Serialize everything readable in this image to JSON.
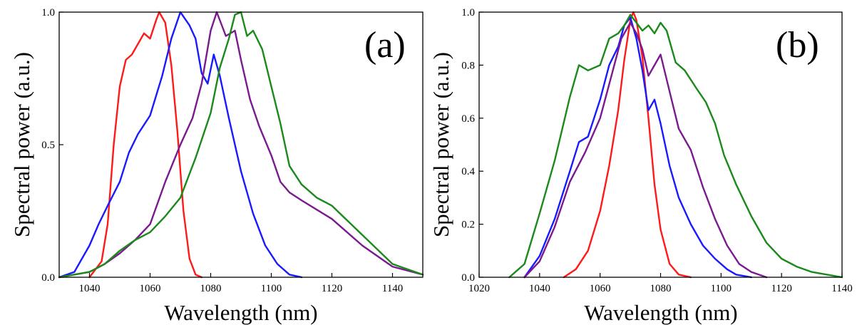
{
  "colors": {
    "red": "#ff1a1a",
    "blue": "#1a1aff",
    "purple": "#7b1a8f",
    "green": "#1a8a1a"
  },
  "chart_data": [
    {
      "type": "line",
      "panel_label": "(a)",
      "xlabel": "Wavelength (nm)",
      "ylabel": "Spectral power (a.u.)",
      "xlim": [
        1030,
        1150
      ],
      "ylim": [
        0,
        1.0
      ],
      "xticks": [
        1040,
        1060,
        1080,
        1100,
        1120,
        1140
      ],
      "xtick_labels": [
        "1040",
        "1060",
        "1080",
        "1100",
        "1120",
        "1140"
      ],
      "yticks": [
        0,
        0.5,
        1.0
      ],
      "ytick_labels": [
        "0.0",
        "0.5",
        "1.0"
      ],
      "series": [
        {
          "color": "#ff1a1a",
          "x": [
            1040,
            1044,
            1046,
            1048,
            1050,
            1052,
            1054,
            1056,
            1058,
            1060,
            1062,
            1063,
            1065,
            1067,
            1069,
            1071,
            1073,
            1075,
            1077
          ],
          "y": [
            0,
            0.06,
            0.2,
            0.5,
            0.72,
            0.82,
            0.84,
            0.88,
            0.92,
            0.9,
            0.97,
            1.0,
            0.96,
            0.8,
            0.55,
            0.25,
            0.07,
            0.01,
            0
          ]
        },
        {
          "color": "#1a1aff",
          "x": [
            1030,
            1035,
            1040,
            1043,
            1046,
            1050,
            1053,
            1056,
            1060,
            1064,
            1067,
            1070,
            1073,
            1075,
            1077,
            1079,
            1081,
            1083,
            1086,
            1090,
            1094,
            1098,
            1102,
            1106,
            1110
          ],
          "y": [
            0,
            0.02,
            0.12,
            0.2,
            0.27,
            0.36,
            0.47,
            0.54,
            0.61,
            0.76,
            0.9,
            1.0,
            0.95,
            0.9,
            0.77,
            0.73,
            0.84,
            0.76,
            0.6,
            0.4,
            0.24,
            0.12,
            0.05,
            0.01,
            0
          ]
        },
        {
          "color": "#7b1a8f",
          "x": [
            1030,
            1040,
            1045,
            1050,
            1055,
            1060,
            1065,
            1070,
            1074,
            1077,
            1080,
            1082,
            1085,
            1088,
            1090,
            1093,
            1096,
            1100,
            1103,
            1106,
            1110,
            1120,
            1130,
            1140,
            1150
          ],
          "y": [
            0,
            0.02,
            0.05,
            0.09,
            0.14,
            0.2,
            0.36,
            0.5,
            0.6,
            0.73,
            0.93,
            1.0,
            0.91,
            0.93,
            0.82,
            0.67,
            0.57,
            0.46,
            0.36,
            0.32,
            0.29,
            0.22,
            0.12,
            0.04,
            0.01
          ]
        },
        {
          "color": "#1a8a1a",
          "x": [
            1030,
            1040,
            1045,
            1050,
            1055,
            1060,
            1065,
            1070,
            1075,
            1080,
            1083,
            1086,
            1088,
            1090,
            1092,
            1094,
            1097,
            1100,
            1103,
            1106,
            1110,
            1115,
            1120,
            1130,
            1140,
            1150
          ],
          "y": [
            0,
            0.02,
            0.05,
            0.1,
            0.14,
            0.17,
            0.23,
            0.3,
            0.45,
            0.62,
            0.79,
            0.9,
            0.99,
            1.0,
            0.91,
            0.93,
            0.86,
            0.72,
            0.58,
            0.42,
            0.35,
            0.3,
            0.27,
            0.16,
            0.05,
            0.01
          ]
        }
      ]
    },
    {
      "type": "line",
      "panel_label": "(b)",
      "xlabel": "Wavelength (nm)",
      "ylabel": "Spectral power (a.u.)",
      "xlim": [
        1020,
        1140
      ],
      "ylim": [
        0,
        1.0
      ],
      "xticks": [
        1020,
        1040,
        1060,
        1080,
        1100,
        1120,
        1140
      ],
      "xtick_labels": [
        "1020",
        "1040",
        "1060",
        "1080",
        "1100",
        "1120",
        "1140"
      ],
      "yticks": [
        0,
        0.2,
        0.4,
        0.6,
        0.8,
        1.0
      ],
      "ytick_labels": [
        "0.0",
        "0.2",
        "0.4",
        "0.6",
        "0.8",
        "1.0"
      ],
      "series": [
        {
          "color": "#ff1a1a",
          "x": [
            1048,
            1052,
            1056,
            1060,
            1063,
            1066,
            1068,
            1070,
            1071,
            1072,
            1074,
            1076,
            1078,
            1080,
            1083,
            1086,
            1090
          ],
          "y": [
            0,
            0.03,
            0.1,
            0.25,
            0.42,
            0.63,
            0.82,
            0.97,
            1.0,
            0.97,
            0.83,
            0.6,
            0.35,
            0.18,
            0.05,
            0.01,
            0
          ]
        },
        {
          "color": "#1a1aff",
          "x": [
            1035,
            1040,
            1045,
            1050,
            1053,
            1056,
            1060,
            1063,
            1066,
            1068,
            1070,
            1072,
            1074,
            1076,
            1078,
            1080,
            1083,
            1086,
            1090,
            1094,
            1098,
            1102,
            1105,
            1110
          ],
          "y": [
            0,
            0.08,
            0.22,
            0.4,
            0.51,
            0.53,
            0.67,
            0.8,
            0.87,
            0.95,
            0.98,
            0.9,
            0.78,
            0.63,
            0.67,
            0.58,
            0.42,
            0.3,
            0.2,
            0.12,
            0.07,
            0.03,
            0.01,
            0
          ]
        },
        {
          "color": "#7b1a8f",
          "x": [
            1035,
            1040,
            1045,
            1050,
            1055,
            1060,
            1064,
            1067,
            1070,
            1072,
            1074,
            1076,
            1078,
            1080,
            1083,
            1086,
            1090,
            1094,
            1098,
            1102,
            1106,
            1110,
            1115
          ],
          "y": [
            0,
            0.06,
            0.19,
            0.36,
            0.47,
            0.6,
            0.77,
            0.9,
            0.96,
            0.92,
            0.86,
            0.76,
            0.8,
            0.84,
            0.7,
            0.56,
            0.48,
            0.34,
            0.22,
            0.12,
            0.05,
            0.02,
            0
          ]
        },
        {
          "color": "#1a8a1a",
          "x": [
            1030,
            1035,
            1040,
            1045,
            1050,
            1053,
            1056,
            1060,
            1063,
            1066,
            1068,
            1070,
            1072,
            1074,
            1076,
            1078,
            1080,
            1082,
            1085,
            1088,
            1092,
            1095,
            1098,
            1101,
            1105,
            1110,
            1115,
            1120,
            1125,
            1130,
            1135,
            1140
          ],
          "y": [
            0,
            0.05,
            0.24,
            0.44,
            0.68,
            0.8,
            0.78,
            0.8,
            0.9,
            0.92,
            0.95,
            0.99,
            0.96,
            0.93,
            0.95,
            0.92,
            0.96,
            0.93,
            0.81,
            0.78,
            0.71,
            0.66,
            0.58,
            0.46,
            0.35,
            0.23,
            0.13,
            0.07,
            0.04,
            0.02,
            0.01,
            0
          ]
        }
      ]
    }
  ]
}
